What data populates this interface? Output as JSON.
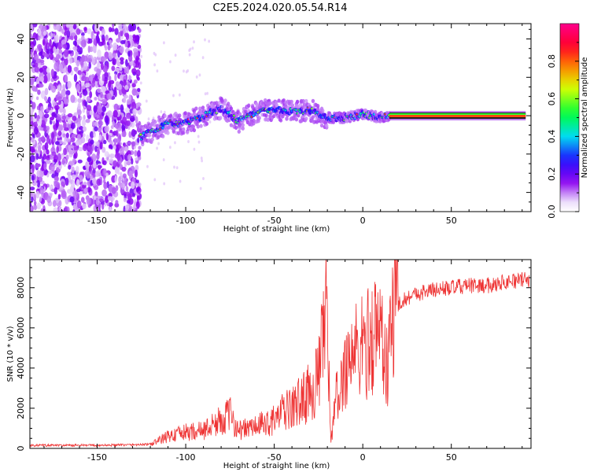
{
  "title": "C2E5.2024.020.05.54.R14",
  "chart_data": [
    {
      "type": "heatmap",
      "xlabel": "Height of straight line (km)",
      "ylabel": "Frequency (Hz)",
      "xlim": [
        -188,
        95
      ],
      "ylim": [
        -50,
        48
      ],
      "xticks": [
        -150,
        -100,
        -50,
        0,
        50
      ],
      "yticks": [
        -40,
        -20,
        0,
        20,
        40
      ],
      "colorbar": {
        "label": "Normalized spectral amplitude",
        "range": [
          0,
          1
        ],
        "ticks": [
          "0.0",
          "0.2",
          "0.4",
          "0.6",
          "0.8"
        ],
        "colormap": "rainbow (white → purple → blue → cyan → green → yellow → red → magenta)"
      },
      "signal_track": {
        "description": "Noise across all frequencies below about -125 km; a narrow, rising band of high amplitude from about -125 km to 15 km; a constant line near 0 Hz from 15 km to 92 km",
        "points": [
          {
            "x": -125,
            "y": -11
          },
          {
            "x": -110,
            "y": -4
          },
          {
            "x": -100,
            "y": -4
          },
          {
            "x": -90,
            "y": 0
          },
          {
            "x": -80,
            "y": 4
          },
          {
            "x": -70,
            "y": -3
          },
          {
            "x": -60,
            "y": 2
          },
          {
            "x": -50,
            "y": 3
          },
          {
            "x": -40,
            "y": 2
          },
          {
            "x": -30,
            "y": 3
          },
          {
            "x": -20,
            "y": -1
          },
          {
            "x": -10,
            "y": -1
          },
          {
            "x": 0,
            "y": 1
          },
          {
            "x": 10,
            "y": -1
          },
          {
            "x": 15,
            "y": 0
          },
          {
            "x": 92,
            "y": 0
          }
        ]
      }
    },
    {
      "type": "line",
      "xlabel": "Height of straight line (km)",
      "ylabel": "SNR (10 * v/v)",
      "xlim": [
        -188,
        95
      ],
      "ylim": [
        0,
        9400
      ],
      "xticks": [
        -150,
        -100,
        -50,
        0,
        50
      ],
      "yticks": [
        0,
        2000,
        4000,
        6000,
        8000
      ],
      "color": "#ee3333",
      "series": [
        {
          "x": [
            -188,
            -170,
            -150,
            -130,
            -120,
            -110,
            -100,
            -90,
            -80,
            -75,
            -70,
            -60,
            -50,
            -45,
            -40,
            -35,
            -30,
            -25,
            -22,
            -20,
            -18,
            -15,
            -12,
            -10,
            -5,
            0,
            5,
            10,
            12,
            14,
            16,
            20,
            25,
            30,
            40,
            50,
            60,
            70,
            80,
            92
          ],
          "y": [
            150,
            150,
            150,
            180,
            200,
            600,
            800,
            900,
            1400,
            1700,
            900,
            1100,
            1400,
            1800,
            2000,
            2400,
            2800,
            3500,
            5500,
            7000,
            400,
            2500,
            3000,
            4200,
            4800,
            5000,
            5500,
            6000,
            5200,
            3500,
            6600,
            7200,
            7500,
            7700,
            7900,
            8000,
            8100,
            8100,
            8300,
            8400
          ]
        }
      ]
    }
  ]
}
